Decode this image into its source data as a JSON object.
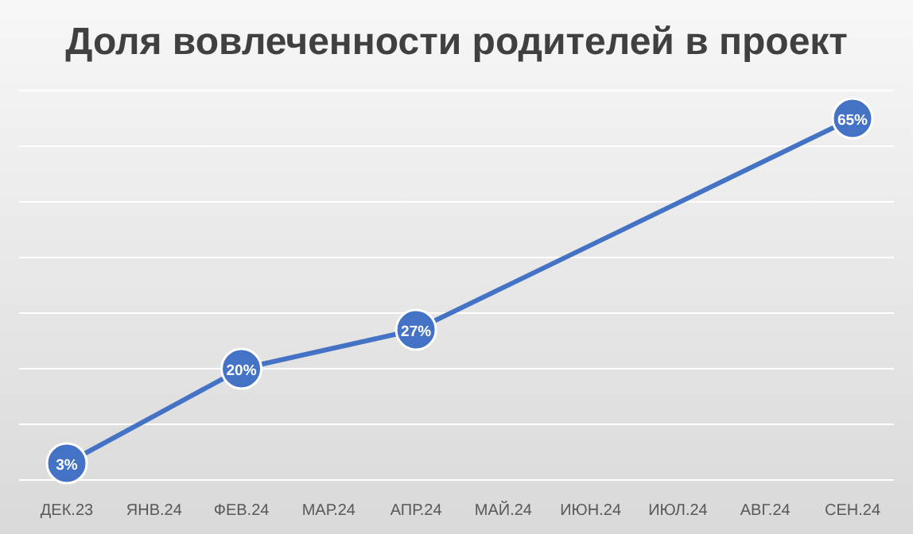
{
  "chart_data": {
    "type": "line",
    "title": "Доля вовлеченности родителей в проект",
    "categories": [
      "ДЕК.23",
      "ЯНВ.24",
      "ФЕВ.24",
      "МАР.24",
      "АПР.24",
      "МАЙ.24",
      "ИЮН.24",
      "ИЮЛ.24",
      "АВГ.24",
      "СЕН.24"
    ],
    "series": [
      {
        "color": "#4472c4",
        "values": [
          3,
          null,
          20,
          null,
          27,
          null,
          null,
          null,
          null,
          65
        ],
        "value_labels": [
          "3%",
          null,
          "20%",
          null,
          "27%",
          null,
          null,
          null,
          null,
          "65%"
        ]
      }
    ],
    "ylim": [
      0,
      70
    ],
    "yticks": [
      {
        "value": 0,
        "label": null
      },
      {
        "value": 10,
        "label": null
      },
      {
        "value": 20,
        "label": null
      },
      {
        "value": 30,
        "label": null
      },
      {
        "value": 40,
        "label": null
      },
      {
        "value": 50,
        "label": null
      },
      {
        "value": 60,
        "label": null
      },
      {
        "value": 70,
        "label": null
      }
    ],
    "tick_labels": "x",
    "grid": "y",
    "marker": "circle",
    "line_style": "solid"
  }
}
